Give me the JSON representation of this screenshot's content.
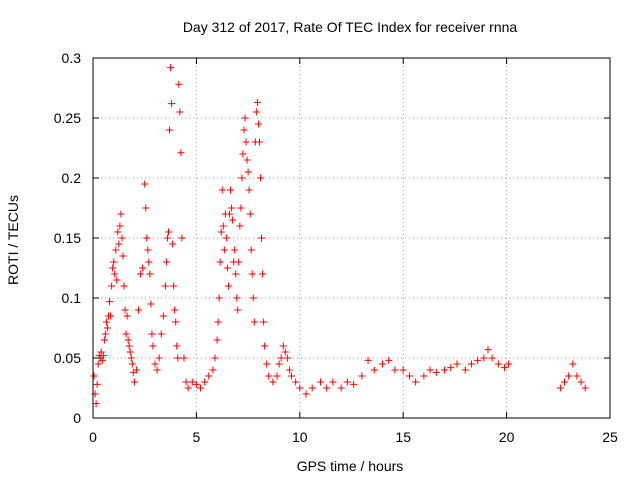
{
  "chart_data": {
    "type": "scatter",
    "title": "Day 312 of 2017, Rate Of TEC Index for receiver rnna",
    "xlabel": "GPS time / hours",
    "ylabel": "ROTI / TECUs",
    "xlim": [
      0,
      25
    ],
    "ylim": [
      0,
      0.3
    ],
    "xticks": [
      0,
      5,
      10,
      15,
      20,
      25
    ],
    "yticks": [
      0,
      0.05,
      0.1,
      0.15,
      0.2,
      0.25,
      0.3
    ],
    "xtick_labels": [
      "0",
      "5",
      "10",
      "15",
      "20",
      "25"
    ],
    "ytick_labels": [
      "0",
      "0.05",
      "0.1",
      "0.15",
      "0.2",
      "0.25",
      "0.3"
    ],
    "grid": true,
    "marker": "plus",
    "series": [
      {
        "color": "#ff0000",
        "points": [
          [
            0.05,
            0.035
          ],
          [
            0.1,
            0.02
          ],
          [
            0.15,
            0.012
          ],
          [
            0.2,
            0.028
          ],
          [
            0.25,
            0.045
          ],
          [
            0.3,
            0.052
          ],
          [
            0.35,
            0.05
          ],
          [
            0.4,
            0.055
          ],
          [
            0.45,
            0.048
          ],
          [
            0.5,
            0.052
          ],
          [
            0.55,
            0.065
          ],
          [
            0.6,
            0.07
          ],
          [
            0.65,
            0.08
          ],
          [
            0.7,
            0.075
          ],
          [
            0.75,
            0.085
          ],
          [
            0.8,
            0.097
          ],
          [
            0.85,
            0.085
          ],
          [
            0.9,
            0.11
          ],
          [
            0.95,
            0.125
          ],
          [
            1.0,
            0.13
          ],
          [
            1.05,
            0.12
          ],
          [
            1.1,
            0.14
          ],
          [
            1.15,
            0.115
          ],
          [
            1.2,
            0.155
          ],
          [
            1.25,
            0.145
          ],
          [
            1.3,
            0.16
          ],
          [
            1.35,
            0.17
          ],
          [
            1.4,
            0.15
          ],
          [
            1.45,
            0.135
          ],
          [
            1.5,
            0.11
          ],
          [
            1.55,
            0.09
          ],
          [
            1.6,
            0.07
          ],
          [
            1.65,
            0.085
          ],
          [
            1.7,
            0.065
          ],
          [
            1.75,
            0.06
          ],
          [
            1.8,
            0.055
          ],
          [
            1.85,
            0.05
          ],
          [
            1.9,
            0.045
          ],
          [
            1.95,
            0.038
          ],
          [
            2.0,
            0.03
          ],
          [
            2.1,
            0.04
          ],
          [
            2.2,
            0.09
          ],
          [
            2.3,
            0.12
          ],
          [
            2.4,
            0.125
          ],
          [
            2.5,
            0.195
          ],
          [
            2.55,
            0.175
          ],
          [
            2.6,
            0.15
          ],
          [
            2.65,
            0.14
          ],
          [
            2.7,
            0.13
          ],
          [
            2.75,
            0.12
          ],
          [
            2.8,
            0.095
          ],
          [
            2.85,
            0.07
          ],
          [
            2.9,
            0.06
          ],
          [
            3.0,
            0.045
          ],
          [
            3.1,
            0.04
          ],
          [
            3.2,
            0.05
          ],
          [
            3.3,
            0.07
          ],
          [
            3.4,
            0.085
          ],
          [
            3.5,
            0.11
          ],
          [
            3.55,
            0.13
          ],
          [
            3.6,
            0.15
          ],
          [
            3.65,
            0.155
          ],
          [
            3.7,
            0.24
          ],
          [
            3.75,
            0.292
          ],
          [
            3.8,
            0.262
          ],
          [
            3.85,
            0.145
          ],
          [
            3.9,
            0.11
          ],
          [
            3.95,
            0.09
          ],
          [
            4.0,
            0.08
          ],
          [
            4.05,
            0.06
          ],
          [
            4.1,
            0.05
          ],
          [
            4.15,
            0.278
          ],
          [
            4.2,
            0.255
          ],
          [
            4.25,
            0.221
          ],
          [
            4.3,
            0.15
          ],
          [
            4.4,
            0.05
          ],
          [
            4.5,
            0.03
          ],
          [
            4.6,
            0.025
          ],
          [
            4.8,
            0.03
          ],
          [
            5.0,
            0.028
          ],
          [
            5.2,
            0.025
          ],
          [
            5.4,
            0.03
          ],
          [
            5.6,
            0.035
          ],
          [
            5.8,
            0.04
          ],
          [
            5.9,
            0.05
          ],
          [
            6.0,
            0.065
          ],
          [
            6.05,
            0.08
          ],
          [
            6.1,
            0.1
          ],
          [
            6.15,
            0.13
          ],
          [
            6.2,
            0.155
          ],
          [
            6.25,
            0.19
          ],
          [
            6.3,
            0.16
          ],
          [
            6.35,
            0.14
          ],
          [
            6.4,
            0.17
          ],
          [
            6.45,
            0.15
          ],
          [
            6.5,
            0.125
          ],
          [
            6.55,
            0.11
          ],
          [
            6.6,
            0.17
          ],
          [
            6.65,
            0.19
          ],
          [
            6.7,
            0.175
          ],
          [
            6.75,
            0.165
          ],
          [
            6.8,
            0.13
          ],
          [
            6.85,
            0.14
          ],
          [
            6.9,
            0.12
          ],
          [
            6.95,
            0.1
          ],
          [
            7.0,
            0.09
          ],
          [
            7.05,
            0.13
          ],
          [
            7.1,
            0.16
          ],
          [
            7.15,
            0.175
          ],
          [
            7.2,
            0.2
          ],
          [
            7.25,
            0.22
          ],
          [
            7.3,
            0.24
          ],
          [
            7.35,
            0.25
          ],
          [
            7.4,
            0.23
          ],
          [
            7.45,
            0.215
          ],
          [
            7.5,
            0.205
          ],
          [
            7.55,
            0.19
          ],
          [
            7.6,
            0.17
          ],
          [
            7.65,
            0.14
          ],
          [
            7.7,
            0.12
          ],
          [
            7.75,
            0.1
          ],
          [
            7.8,
            0.08
          ],
          [
            7.85,
            0.23
          ],
          [
            7.9,
            0.255
          ],
          [
            7.95,
            0.263
          ],
          [
            8.0,
            0.245
          ],
          [
            8.05,
            0.23
          ],
          [
            8.1,
            0.2
          ],
          [
            8.15,
            0.15
          ],
          [
            8.2,
            0.12
          ],
          [
            8.25,
            0.08
          ],
          [
            8.3,
            0.06
          ],
          [
            8.4,
            0.045
          ],
          [
            8.5,
            0.035
          ],
          [
            8.7,
            0.03
          ],
          [
            8.9,
            0.035
          ],
          [
            9.0,
            0.045
          ],
          [
            9.1,
            0.05
          ],
          [
            9.2,
            0.06
          ],
          [
            9.3,
            0.055
          ],
          [
            9.4,
            0.05
          ],
          [
            9.5,
            0.04
          ],
          [
            9.6,
            0.035
          ],
          [
            9.8,
            0.03
          ],
          [
            10.0,
            0.025
          ],
          [
            10.3,
            0.02
          ],
          [
            10.6,
            0.025
          ],
          [
            11.0,
            0.03
          ],
          [
            11.3,
            0.025
          ],
          [
            11.6,
            0.03
          ],
          [
            12.0,
            0.025
          ],
          [
            12.3,
            0.03
          ],
          [
            12.6,
            0.028
          ],
          [
            13.0,
            0.035
          ],
          [
            13.3,
            0.048
          ],
          [
            13.6,
            0.04
          ],
          [
            14.0,
            0.045
          ],
          [
            14.3,
            0.048
          ],
          [
            14.6,
            0.04
          ],
          [
            15.0,
            0.04
          ],
          [
            15.3,
            0.035
          ],
          [
            15.6,
            0.03
          ],
          [
            16.0,
            0.035
          ],
          [
            16.3,
            0.04
          ],
          [
            16.6,
            0.038
          ],
          [
            17.0,
            0.04
          ],
          [
            17.3,
            0.042
          ],
          [
            17.6,
            0.045
          ],
          [
            18.0,
            0.04
          ],
          [
            18.3,
            0.045
          ],
          [
            18.6,
            0.048
          ],
          [
            18.9,
            0.05
          ],
          [
            19.1,
            0.057
          ],
          [
            19.3,
            0.05
          ],
          [
            19.6,
            0.045
          ],
          [
            19.9,
            0.042
          ],
          [
            20.1,
            0.045
          ],
          [
            22.6,
            0.025
          ],
          [
            22.8,
            0.03
          ],
          [
            23.0,
            0.035
          ],
          [
            23.2,
            0.045
          ],
          [
            23.4,
            0.035
          ],
          [
            23.6,
            0.03
          ],
          [
            23.8,
            0.025
          ]
        ]
      }
    ]
  }
}
